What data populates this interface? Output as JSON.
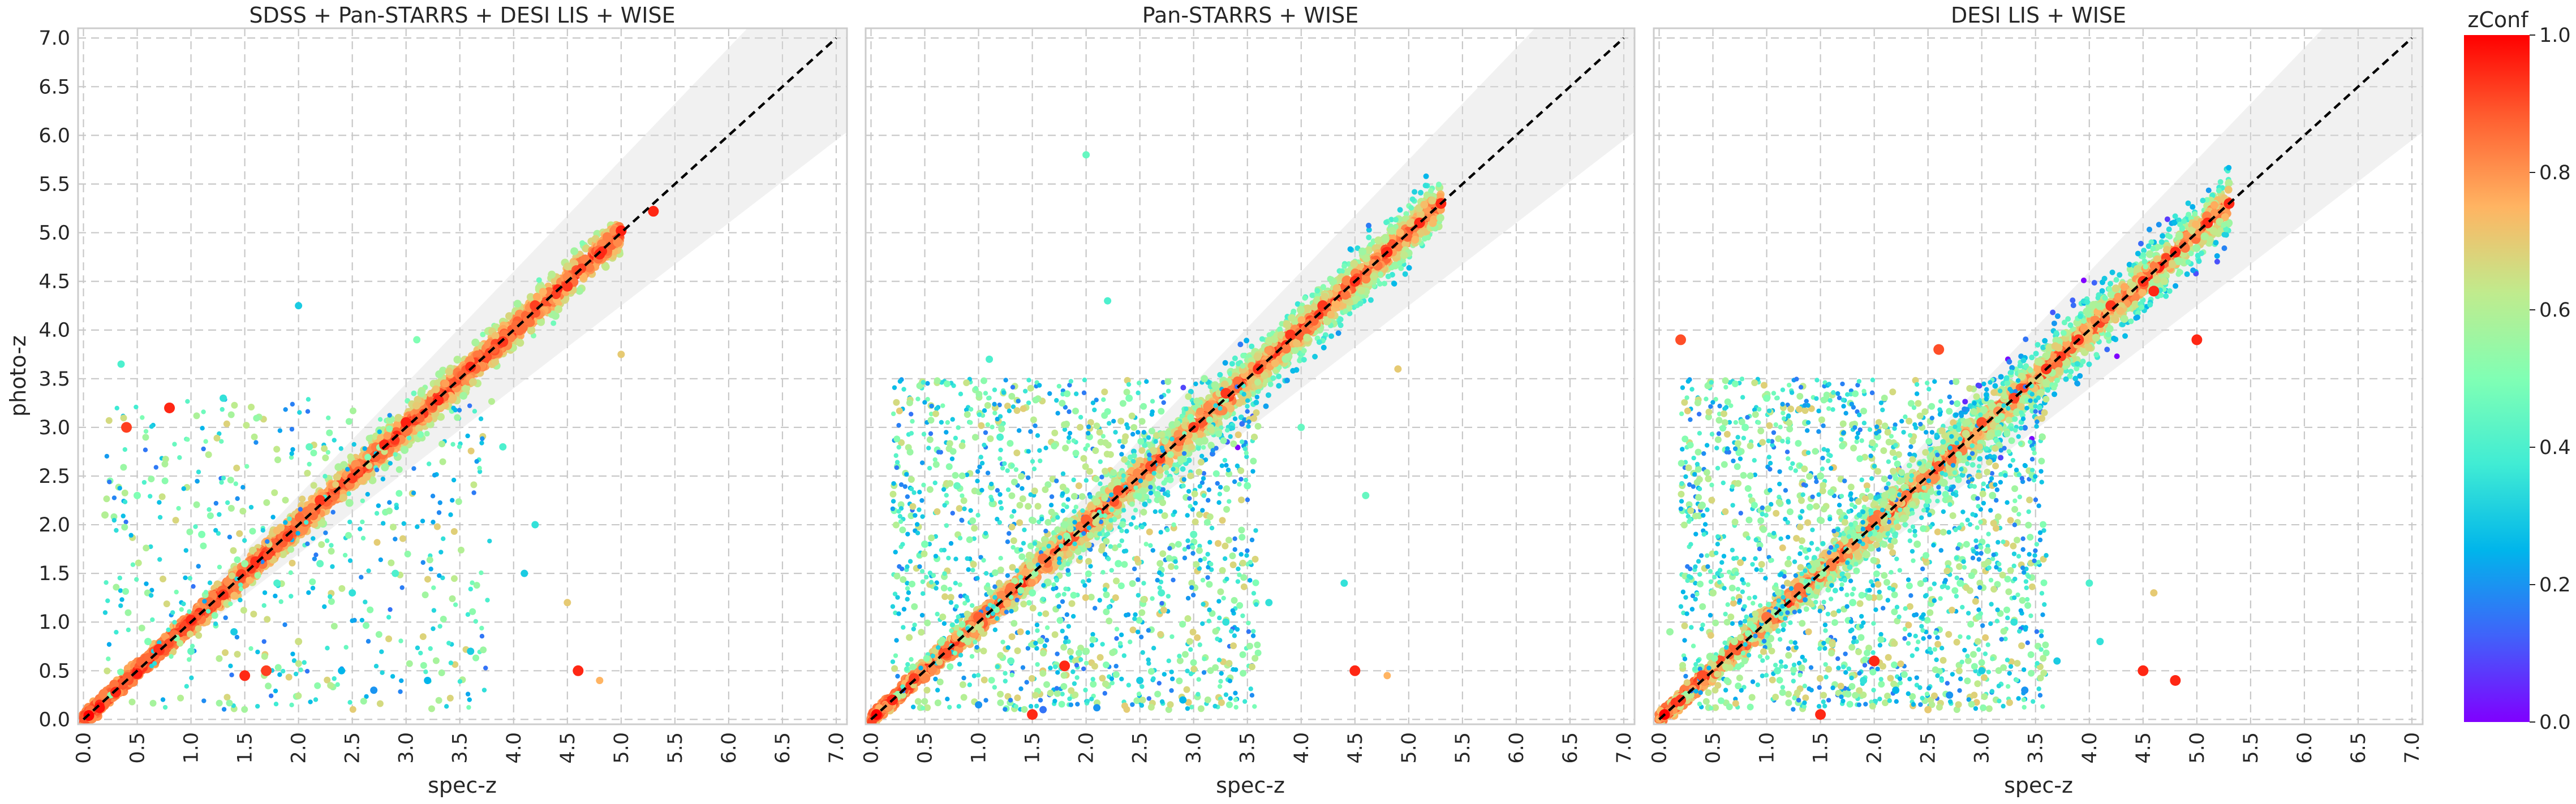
{
  "chart_data": [
    {
      "type": "scatter",
      "title": "SDSS + Pan-STARRS + DESI LIS + WISE",
      "xlabel": "spec-z",
      "ylabel": "photo-z",
      "xlim": [
        -0.05,
        7.1
      ],
      "ylim": [
        -0.05,
        7.1
      ],
      "xticks": [
        "0.0",
        "0.5",
        "1.0",
        "1.5",
        "2.0",
        "2.5",
        "3.0",
        "3.5",
        "4.0",
        "4.5",
        "5.0",
        "5.5",
        "6.0",
        "6.5",
        "7.0"
      ],
      "yticks": [
        "0.0",
        "0.5",
        "1.0",
        "1.5",
        "2.0",
        "2.5",
        "3.0",
        "3.5",
        "4.0",
        "4.5",
        "5.0",
        "5.5",
        "6.0",
        "6.5",
        "7.0"
      ],
      "grid": true,
      "reference_line": "y = x",
      "shaded_band": "±15% around y = x",
      "points": [
        [
          0.05,
          0.04,
          1.0
        ],
        [
          0.15,
          0.12,
          0.98
        ],
        [
          0.3,
          0.28,
          0.95
        ],
        [
          0.5,
          0.47,
          0.96
        ],
        [
          0.7,
          0.72,
          0.94
        ],
        [
          1.0,
          1.02,
          0.95
        ],
        [
          1.3,
          1.28,
          0.93
        ],
        [
          1.6,
          1.62,
          0.94
        ],
        [
          1.9,
          1.88,
          0.92
        ],
        [
          2.2,
          2.25,
          0.93
        ],
        [
          2.5,
          2.48,
          0.92
        ],
        [
          2.8,
          2.82,
          0.95
        ],
        [
          3.0,
          3.05,
          0.96
        ],
        [
          3.3,
          3.28,
          0.95
        ],
        [
          3.6,
          3.62,
          0.94
        ],
        [
          3.9,
          3.88,
          0.93
        ],
        [
          4.2,
          4.25,
          0.92
        ],
        [
          4.5,
          4.45,
          0.93
        ],
        [
          4.8,
          4.78,
          0.95
        ],
        [
          5.0,
          5.02,
          0.96
        ],
        [
          5.3,
          5.22,
          0.95
        ],
        [
          0.8,
          3.2,
          0.95
        ],
        [
          0.4,
          3.0,
          0.92
        ],
        [
          1.5,
          0.45,
          0.95
        ],
        [
          1.7,
          0.5,
          0.92
        ],
        [
          4.6,
          0.5,
          0.95
        ],
        [
          4.8,
          0.4,
          0.75
        ],
        [
          2.0,
          4.25,
          0.3
        ],
        [
          5.0,
          3.75,
          0.7
        ],
        [
          0.35,
          3.65,
          0.4
        ],
        [
          0.2,
          2.1,
          0.6
        ],
        [
          0.5,
          2.3,
          0.5
        ],
        [
          1.1,
          1.9,
          0.5
        ],
        [
          1.5,
          1.6,
          0.55
        ],
        [
          1.8,
          1.4,
          0.4
        ],
        [
          2.2,
          1.6,
          0.45
        ],
        [
          2.5,
          1.3,
          0.35
        ],
        [
          2.9,
          1.5,
          0.4
        ],
        [
          0.6,
          0.8,
          0.5
        ],
        [
          1.0,
          0.7,
          0.45
        ],
        [
          1.4,
          0.9,
          0.3
        ],
        [
          2.0,
          0.8,
          0.65
        ],
        [
          2.4,
          0.5,
          0.25
        ],
        [
          2.7,
          0.3,
          0.2
        ],
        [
          3.2,
          0.4,
          0.25
        ],
        [
          3.6,
          0.7,
          0.3
        ],
        [
          3.9,
          2.8,
          0.4
        ],
        [
          4.1,
          1.5,
          0.3
        ],
        [
          4.2,
          2.0,
          0.35
        ],
        [
          4.5,
          1.2,
          0.7
        ],
        [
          1.3,
          3.3,
          0.35
        ],
        [
          2.1,
          2.8,
          0.45
        ],
        [
          3.1,
          3.9,
          0.5
        ]
      ]
    },
    {
      "type": "scatter",
      "title": "Pan-STARRS + WISE",
      "xlabel": "spec-z",
      "ylabel": "",
      "xlim": [
        -0.05,
        7.1
      ],
      "ylim": [
        -0.05,
        7.1
      ],
      "xticks": [
        "0.0",
        "0.5",
        "1.0",
        "1.5",
        "2.0",
        "2.5",
        "3.0",
        "3.5",
        "4.0",
        "4.5",
        "5.0",
        "5.5",
        "6.0",
        "6.5",
        "7.0"
      ],
      "grid": true,
      "reference_line": "y = x",
      "shaded_band": "±15% around y = x",
      "points": [
        [
          0.05,
          0.05,
          1.0
        ],
        [
          0.2,
          0.2,
          0.95
        ],
        [
          0.4,
          0.42,
          0.92
        ],
        [
          0.7,
          0.68,
          0.9
        ],
        [
          1.0,
          1.05,
          0.88
        ],
        [
          1.3,
          1.35,
          0.85
        ],
        [
          1.6,
          1.65,
          0.85
        ],
        [
          2.0,
          2.05,
          0.88
        ],
        [
          2.3,
          2.35,
          0.9
        ],
        [
          2.6,
          2.6,
          0.9
        ],
        [
          3.0,
          3.0,
          0.92
        ],
        [
          3.3,
          3.35,
          0.93
        ],
        [
          3.6,
          3.6,
          0.94
        ],
        [
          3.9,
          3.95,
          0.93
        ],
        [
          4.2,
          4.25,
          0.93
        ],
        [
          4.5,
          4.5,
          0.94
        ],
        [
          4.8,
          4.8,
          0.95
        ],
        [
          5.1,
          5.1,
          0.95
        ],
        [
          5.3,
          5.3,
          0.95
        ],
        [
          2.0,
          5.8,
          0.45
        ],
        [
          2.2,
          4.3,
          0.4
        ],
        [
          1.1,
          3.7,
          0.4
        ],
        [
          1.5,
          0.05,
          0.95
        ],
        [
          1.8,
          0.55,
          0.95
        ],
        [
          4.5,
          0.5,
          0.95
        ],
        [
          4.8,
          0.45,
          0.75
        ],
        [
          4.9,
          3.6,
          0.7
        ],
        [
          4.6,
          2.3,
          0.45
        ],
        [
          0.5,
          1.8,
          0.5
        ],
        [
          0.8,
          2.4,
          0.45
        ],
        [
          1.2,
          2.9,
          0.4
        ],
        [
          1.5,
          1.3,
          0.5
        ],
        [
          1.8,
          2.0,
          0.55
        ],
        [
          2.3,
          1.6,
          0.5
        ],
        [
          2.7,
          1.3,
          0.4
        ],
        [
          3.0,
          1.9,
          0.45
        ],
        [
          3.3,
          1.0,
          0.35
        ],
        [
          0.9,
          0.8,
          0.6
        ],
        [
          1.3,
          0.6,
          0.45
        ],
        [
          2.0,
          0.7,
          0.55
        ],
        [
          2.5,
          0.4,
          0.3
        ],
        [
          2.9,
          0.2,
          0.25
        ],
        [
          1.0,
          0.15,
          0.2
        ],
        [
          1.6,
          0.1,
          0.15
        ],
        [
          2.1,
          0.12,
          0.2
        ],
        [
          3.7,
          1.2,
          0.35
        ],
        [
          4.0,
          3.0,
          0.45
        ],
        [
          4.4,
          1.4,
          0.35
        ],
        [
          3.1,
          3.5,
          0.55
        ],
        [
          2.4,
          3.3,
          0.5
        ],
        [
          3.5,
          2.4,
          0.5
        ]
      ]
    },
    {
      "type": "scatter",
      "title": "DESI LIS + WISE",
      "xlabel": "spec-z",
      "ylabel": "",
      "xlim": [
        -0.05,
        7.1
      ],
      "ylim": [
        -0.05,
        7.1
      ],
      "xticks": [
        "0.0",
        "0.5",
        "1.0",
        "1.5",
        "2.0",
        "2.5",
        "3.0",
        "3.5",
        "4.0",
        "4.5",
        "5.0",
        "5.5",
        "6.0",
        "6.5",
        "7.0"
      ],
      "grid": true,
      "reference_line": "y = x",
      "shaded_band": "±15% around y = x",
      "points": [
        [
          0.05,
          0.05,
          1.0
        ],
        [
          0.2,
          0.2,
          0.92
        ],
        [
          0.4,
          0.45,
          0.9
        ],
        [
          0.7,
          0.75,
          0.88
        ],
        [
          1.0,
          1.05,
          0.85
        ],
        [
          1.3,
          1.35,
          0.85
        ],
        [
          1.6,
          1.6,
          0.83
        ],
        [
          2.0,
          2.05,
          0.85
        ],
        [
          2.3,
          2.3,
          0.85
        ],
        [
          2.6,
          2.6,
          0.88
        ],
        [
          3.0,
          3.05,
          0.9
        ],
        [
          3.3,
          3.3,
          0.92
        ],
        [
          3.6,
          3.6,
          0.93
        ],
        [
          3.9,
          3.9,
          0.93
        ],
        [
          4.2,
          4.25,
          0.93
        ],
        [
          4.5,
          4.5,
          0.94
        ],
        [
          4.8,
          4.8,
          0.95
        ],
        [
          5.1,
          5.1,
          0.95
        ],
        [
          5.3,
          5.3,
          0.95
        ],
        [
          0.2,
          3.9,
          0.9
        ],
        [
          1.0,
          3.3,
          0.5
        ],
        [
          2.6,
          3.8,
          0.9
        ],
        [
          5.0,
          3.9,
          0.95
        ],
        [
          4.6,
          4.4,
          0.95
        ],
        [
          1.5,
          0.05,
          0.95
        ],
        [
          2.0,
          0.6,
          0.95
        ],
        [
          2.5,
          0.1,
          0.7
        ],
        [
          4.5,
          0.5,
          0.95
        ],
        [
          4.8,
          0.4,
          0.95
        ],
        [
          4.6,
          1.3,
          0.7
        ],
        [
          0.4,
          2.2,
          0.55
        ],
        [
          0.8,
          3.0,
          0.5
        ],
        [
          1.2,
          1.6,
          0.6
        ],
        [
          1.5,
          2.5,
          0.55
        ],
        [
          1.8,
          1.2,
          0.5
        ],
        [
          2.1,
          2.3,
          0.6
        ],
        [
          2.4,
          1.8,
          0.55
        ],
        [
          2.8,
          1.4,
          0.5
        ],
        [
          3.1,
          2.3,
          0.55
        ],
        [
          3.3,
          1.0,
          0.35
        ],
        [
          0.7,
          0.8,
          0.6
        ],
        [
          1.1,
          0.5,
          0.45
        ],
        [
          1.9,
          0.4,
          0.35
        ],
        [
          2.2,
          0.3,
          0.25
        ],
        [
          2.7,
          0.25,
          0.2
        ],
        [
          3.0,
          0.5,
          0.3
        ],
        [
          3.4,
          0.3,
          0.2
        ],
        [
          3.7,
          0.6,
          0.3
        ],
        [
          4.0,
          1.4,
          0.4
        ],
        [
          4.1,
          0.8,
          0.35
        ],
        [
          0.1,
          0.9,
          0.55
        ],
        [
          0.5,
          1.3,
          0.6
        ]
      ]
    }
  ],
  "colorbar": {
    "label": "zConf",
    "min": 0.0,
    "max": 1.0,
    "ticks": [
      "0.0",
      "0.2",
      "0.4",
      "0.6",
      "0.8",
      "1.0"
    ],
    "colormap": "rainbow"
  }
}
